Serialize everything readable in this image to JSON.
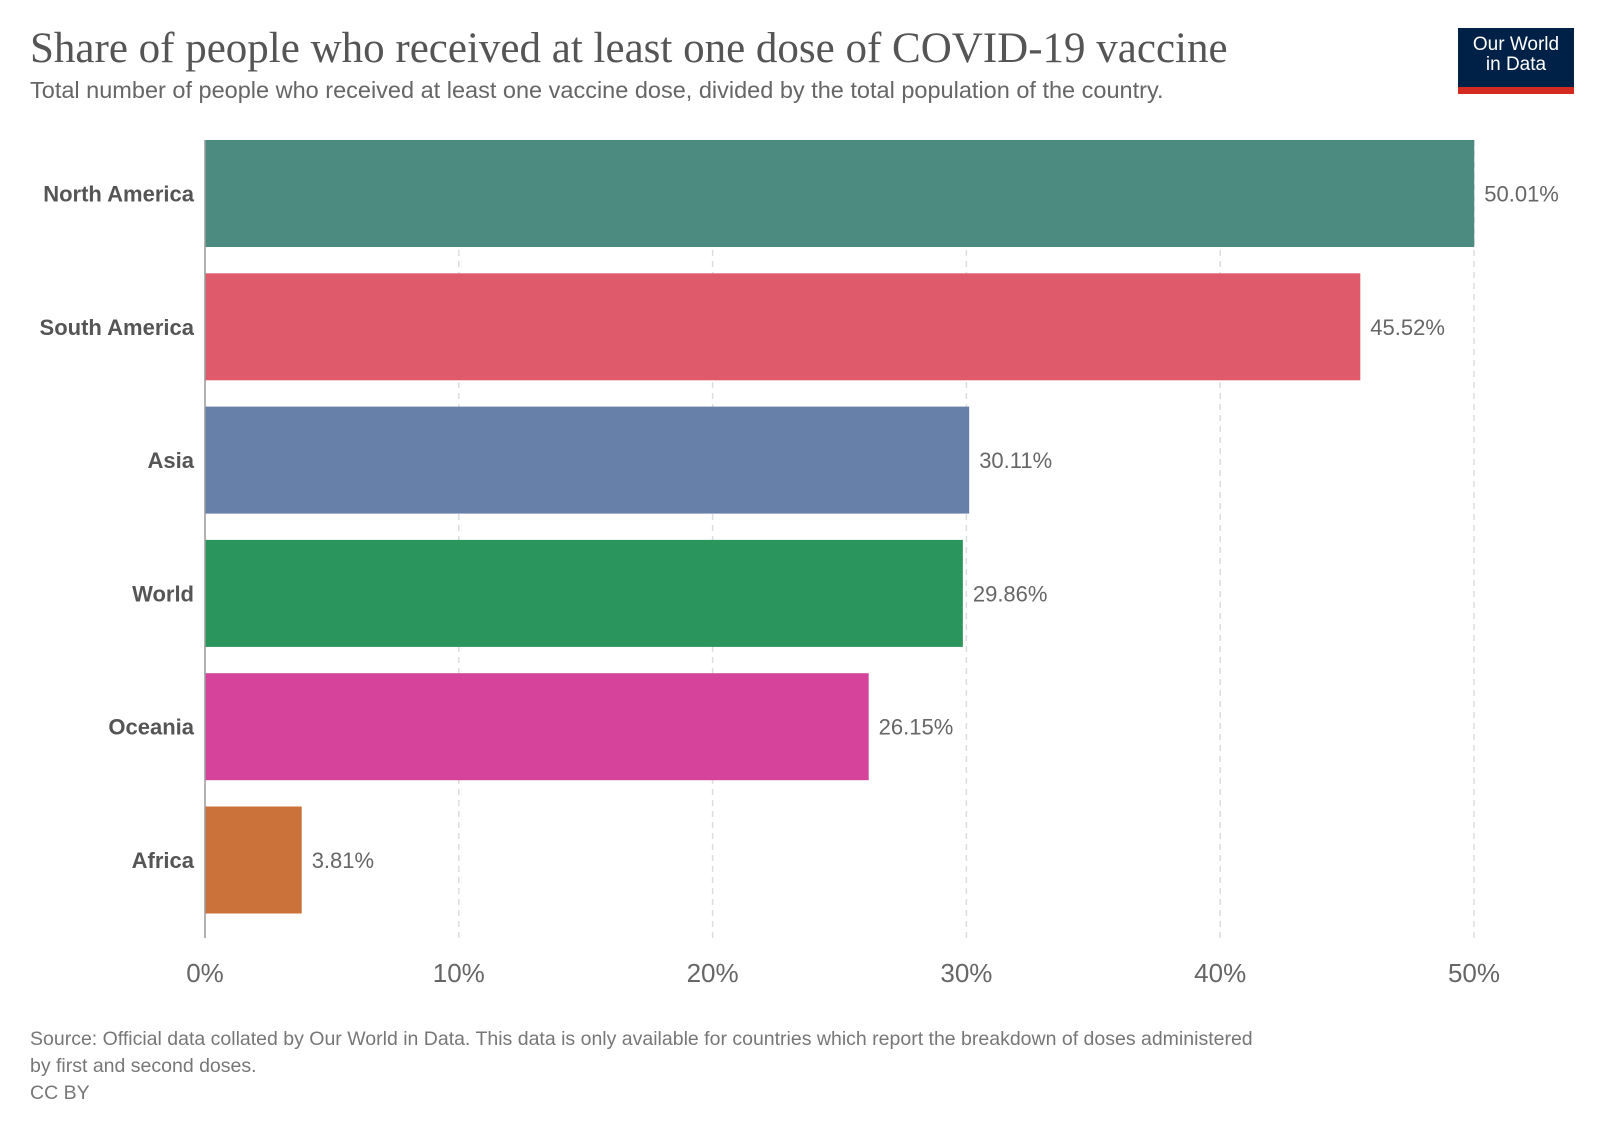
{
  "title": "Share of people who received at least one dose of COVID-19 vaccine",
  "subtitle": "Total number of people who received at least one vaccine dose, divided by the total population of the country.",
  "logo": {
    "line1": "Our World",
    "line2": "in Data"
  },
  "footer": {
    "source_line1": "Source: Official data collated by Our World in Data. This data is only available for countries which report the breakdown of doses administered",
    "source_line2": "by first and second doses.",
    "license": "CC BY"
  },
  "chart_data": {
    "type": "bar",
    "orientation": "horizontal",
    "title": "Share of people who received at least one dose of COVID-19 vaccine",
    "xlabel": "",
    "ylabel": "",
    "xlim": [
      0,
      50
    ],
    "grid": true,
    "categories": [
      "North America",
      "South America",
      "Asia",
      "World",
      "Oceania",
      "Africa"
    ],
    "values": [
      50.01,
      45.52,
      30.11,
      29.86,
      26.15,
      3.81
    ],
    "value_labels": [
      "50.01%",
      "45.52%",
      "30.11%",
      "29.86%",
      "26.15%",
      "3.81%"
    ],
    "colors": [
      "#4c8b80",
      "#df5b6b",
      "#6780a9",
      "#2a955c",
      "#d5449a",
      "#cb713a"
    ],
    "xticks": [
      0,
      10,
      20,
      30,
      40,
      50
    ],
    "xtick_labels": [
      "0%",
      "10%",
      "20%",
      "30%",
      "40%",
      "50%"
    ]
  }
}
